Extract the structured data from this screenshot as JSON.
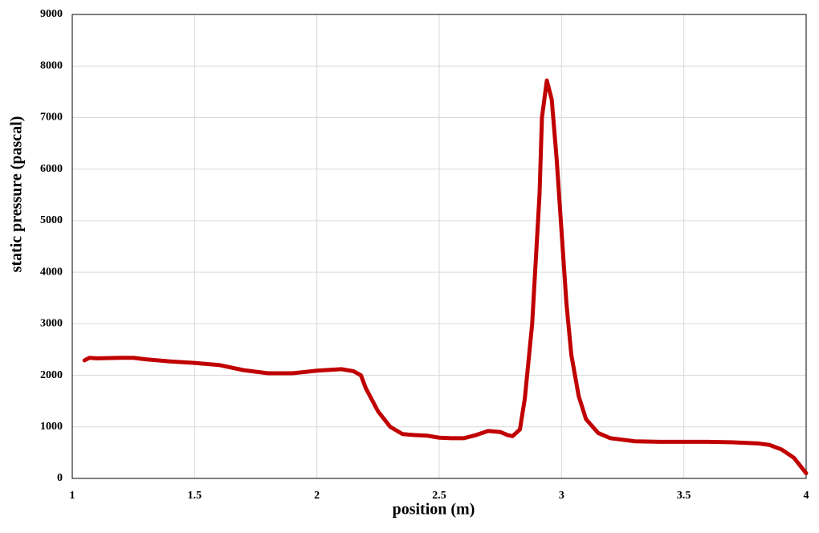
{
  "chart_data": {
    "type": "line",
    "x_label": "position (m)",
    "y_label": "static pressure (pascal)",
    "x": [
      1.05,
      1.07,
      1.1,
      1.2,
      1.25,
      1.3,
      1.4,
      1.5,
      1.6,
      1.7,
      1.8,
      1.9,
      2.0,
      2.1,
      2.15,
      2.18,
      2.2,
      2.25,
      2.3,
      2.35,
      2.4,
      2.45,
      2.5,
      2.55,
      2.6,
      2.65,
      2.7,
      2.75,
      2.78,
      2.8,
      2.83,
      2.85,
      2.88,
      2.91,
      2.92,
      2.94,
      2.96,
      2.98,
      3.0,
      3.02,
      3.04,
      3.07,
      3.1,
      3.15,
      3.2,
      3.3,
      3.4,
      3.5,
      3.6,
      3.7,
      3.8,
      3.85,
      3.9,
      3.95,
      4.0
    ],
    "values": [
      2290,
      2340,
      2330,
      2340,
      2340,
      2310,
      2270,
      2240,
      2200,
      2100,
      2040,
      2040,
      2090,
      2120,
      2080,
      2000,
      1750,
      1300,
      1000,
      860,
      840,
      830,
      790,
      780,
      780,
      840,
      920,
      900,
      840,
      820,
      950,
      1550,
      3000,
      5500,
      7000,
      7720,
      7350,
      6200,
      4800,
      3400,
      2400,
      1600,
      1150,
      880,
      780,
      720,
      710,
      710,
      710,
      700,
      680,
      650,
      560,
      400,
      100
    ],
    "color": "#c00000",
    "xlim": [
      1,
      4
    ],
    "xticks": [
      1,
      1.5,
      2,
      2.5,
      3,
      3.5,
      4
    ],
    "ylim": [
      0,
      9000
    ],
    "yticks": [
      0,
      1000,
      2000,
      3000,
      4000,
      5000,
      6000,
      7000,
      8000,
      9000
    ],
    "grid": true
  }
}
